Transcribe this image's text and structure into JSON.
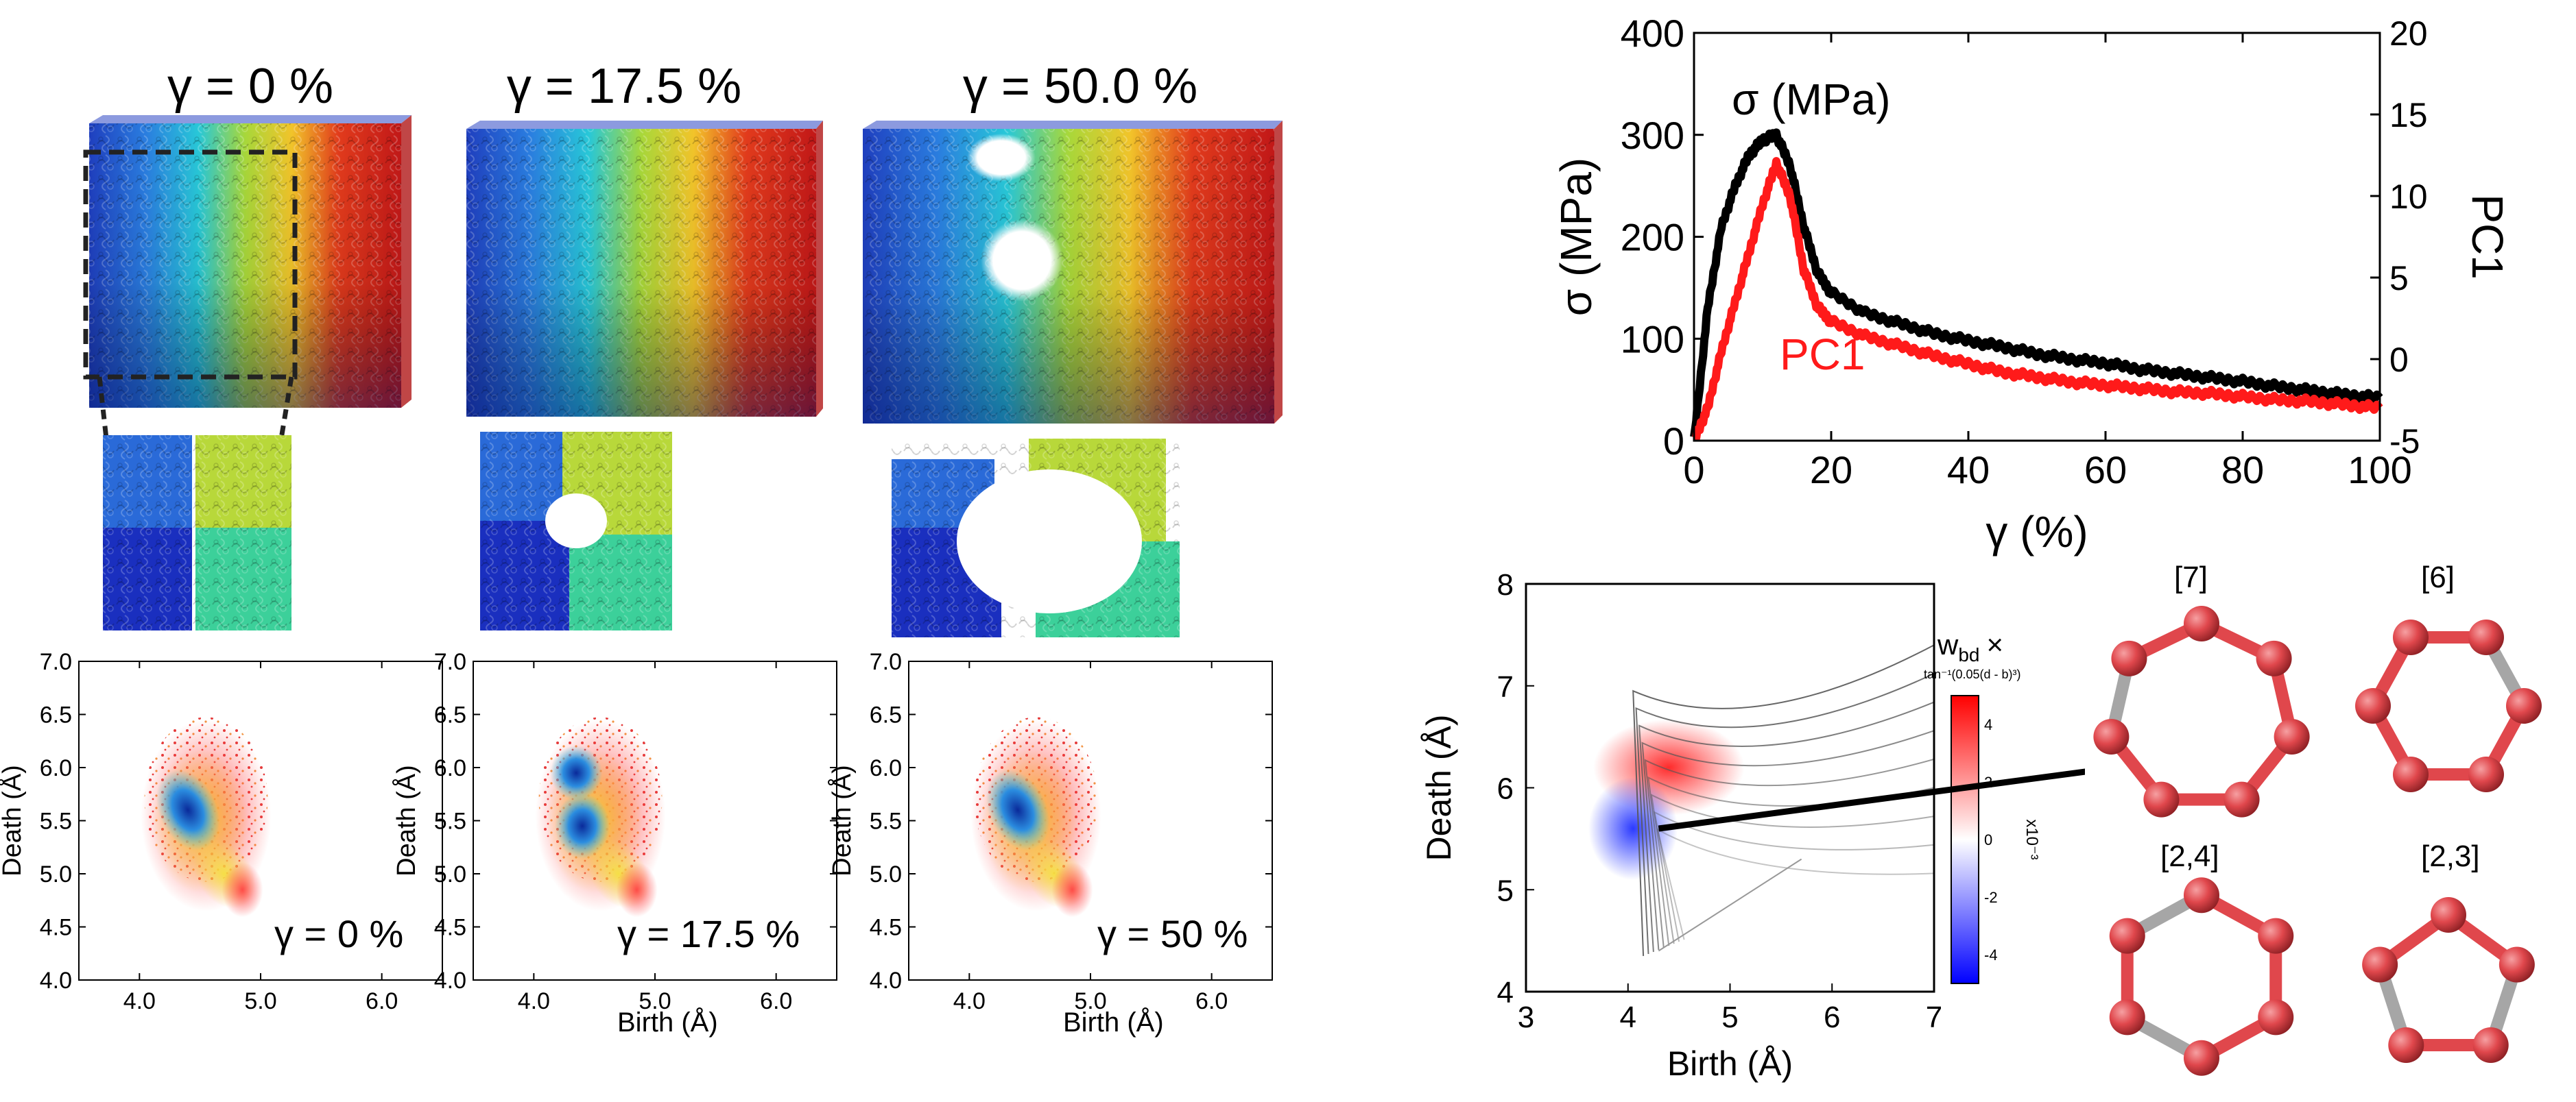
{
  "panels_top": [
    {
      "title": "γ = 0 %"
    },
    {
      "title": "γ = 17.5 %"
    },
    {
      "title": "γ = 50.0 %"
    }
  ],
  "pd_plots": [
    {
      "label": "γ = 0 %",
      "xlabel": "",
      "ylabel": "Death (Å)"
    },
    {
      "label": "γ = 17.5 %",
      "xlabel": "Birth (Å)",
      "ylabel": "Death (Å)"
    },
    {
      "label": "γ = 50 %",
      "xlabel": "Birth (Å)",
      "ylabel": "Death (Å)"
    }
  ],
  "pd_axes": {
    "xticks": [
      "4.0",
      "5.0",
      "6.0"
    ],
    "yticks": [
      "4.0",
      "4.5",
      "5.0",
      "5.5",
      "6.0",
      "6.5",
      "7.0"
    ]
  },
  "colors": {
    "arrow": "#ff0000",
    "stress": "#000000",
    "pc1": "#ff1a1a",
    "atom": "#e0474c",
    "bond_red": "#e0474c",
    "bond_gray": "#a6a6a6"
  },
  "ring_labels": [
    "[7]",
    "[6]",
    "[2,4]",
    "[2,3]"
  ],
  "colorbar": {
    "title_main": "w",
    "title_sub": "bd",
    "title_times": "×",
    "formula": "tan⁻¹(0.05(d - b)³)",
    "exponent": "x10⁻³",
    "ticks": [
      "4",
      "2",
      "0",
      "-2",
      "-4"
    ]
  },
  "chart_data": [
    {
      "type": "line",
      "xlabel": "γ (%)",
      "ylabel": "σ (MPa)",
      "y2label": "PC1",
      "xlim": [
        0,
        100
      ],
      "ylim": [
        0,
        400
      ],
      "y2lim": [
        -5,
        20
      ],
      "xticks": [
        "0",
        "20",
        "40",
        "60",
        "80",
        "100"
      ],
      "yticks": [
        "0",
        "100",
        "200",
        "300",
        "400"
      ],
      "y2ticks": [
        "-5",
        "0",
        "5",
        "10",
        "15",
        "20"
      ],
      "annotations": [
        "σ (MPa)",
        "PC1"
      ],
      "series": [
        {
          "name": "σ (MPa)",
          "axis": "left",
          "color": "#000000",
          "x": [
            0,
            2,
            4,
            6,
            8,
            10,
            12,
            14,
            16,
            18,
            20,
            25,
            30,
            35,
            40,
            45,
            50,
            55,
            60,
            65,
            70,
            75,
            80,
            85,
            90,
            95,
            100
          ],
          "y": [
            0,
            130,
            210,
            250,
            280,
            295,
            300,
            270,
            210,
            165,
            145,
            125,
            115,
            105,
            98,
            92,
            85,
            80,
            76,
            70,
            66,
            62,
            58,
            53,
            49,
            45,
            42
          ]
        },
        {
          "name": "PC1",
          "axis": "right",
          "color": "#ff1a1a",
          "x": [
            0,
            2,
            4,
            6,
            8,
            10,
            12,
            14,
            16,
            18,
            20,
            25,
            30,
            35,
            40,
            45,
            50,
            55,
            60,
            65,
            70,
            75,
            80,
            85,
            90,
            95,
            100
          ],
          "y": [
            -5,
            -3,
            0.5,
            3.5,
            6.5,
            9.5,
            12,
            10,
            5.5,
            3.2,
            2.3,
            1.4,
            0.8,
            0.2,
            -0.3,
            -0.8,
            -1.1,
            -1.4,
            -1.6,
            -1.8,
            -2.0,
            -2.1,
            -2.3,
            -2.5,
            -2.6,
            -2.8,
            -3.0
          ]
        }
      ]
    },
    {
      "type": "heatmap",
      "xlabel": "Birth (Å)",
      "ylabel": "Death (Å)",
      "xlim": [
        3,
        7
      ],
      "ylim": [
        4,
        8
      ],
      "xticks": [
        "3",
        "4",
        "5",
        "6",
        "7"
      ],
      "yticks": [
        "4",
        "5",
        "6",
        "7",
        "8"
      ],
      "colorbar_range": [
        -5,
        5
      ]
    }
  ]
}
